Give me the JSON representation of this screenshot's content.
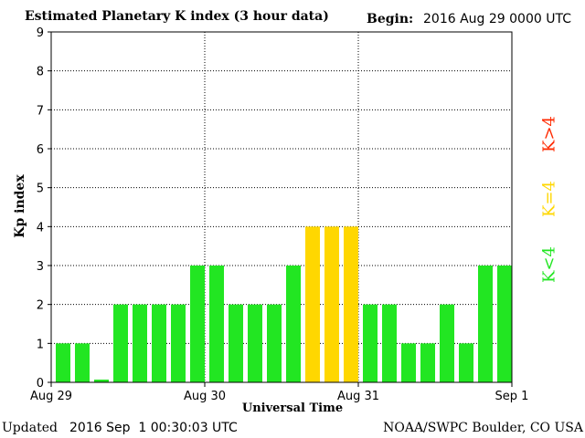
{
  "header": {
    "title": "Estimated Planetary K index (3 hour data)",
    "begin_label": "Begin:",
    "begin_value": "2016 Aug 29 0000 UTC"
  },
  "footer": {
    "updated_label": "Updated",
    "updated_value": "2016 Sep  1 00:30:03 UTC",
    "source": "NOAA/SWPC Boulder, CO USA"
  },
  "legend": {
    "high": {
      "label": "K>4",
      "color": "#ff2a00"
    },
    "equal": {
      "label": "K=4",
      "color": "#ffd700"
    },
    "low": {
      "label": "K<4",
      "color": "#22e622"
    }
  },
  "chart_data": {
    "type": "bar",
    "title": "Estimated Planetary K index (3 hour data)",
    "xlabel": "Universal Time",
    "ylabel": "Kp index",
    "ylim": [
      0,
      9
    ],
    "yticks": [
      "0",
      "1",
      "2",
      "3",
      "4",
      "5",
      "6",
      "7",
      "8",
      "9"
    ],
    "xticks": [
      "Aug 29",
      "Aug 30",
      "Aug 31",
      "Sep 1"
    ],
    "grid": true,
    "categories": [
      "Aug 29 00",
      "Aug 29 03",
      "Aug 29 06",
      "Aug 29 09",
      "Aug 29 12",
      "Aug 29 15",
      "Aug 29 18",
      "Aug 29 21",
      "Aug 30 00",
      "Aug 30 03",
      "Aug 30 06",
      "Aug 30 09",
      "Aug 30 12",
      "Aug 30 15",
      "Aug 30 18",
      "Aug 30 21",
      "Aug 31 00",
      "Aug 31 03",
      "Aug 31 06",
      "Aug 31 09",
      "Aug 31 12",
      "Aug 31 15",
      "Aug 31 18",
      "Aug 31 21"
    ],
    "values": [
      1,
      1,
      0.07,
      2,
      2,
      2,
      2,
      3,
      3,
      2,
      2,
      2,
      3,
      4,
      4,
      4,
      2,
      2,
      1,
      1,
      2,
      1,
      3,
      3
    ]
  }
}
